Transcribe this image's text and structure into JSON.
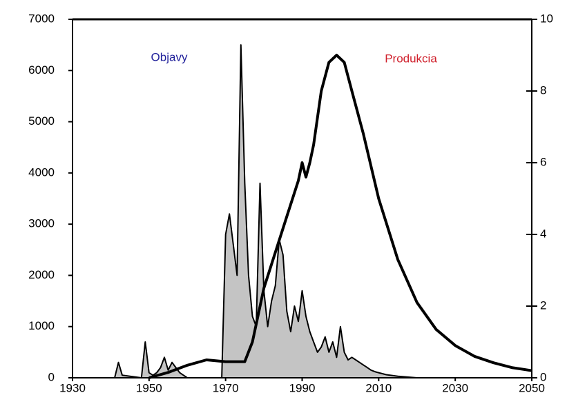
{
  "chart_data": {
    "type": "combo",
    "xlim": [
      1930,
      2050
    ],
    "xticks": [
      1930,
      1950,
      1970,
      1990,
      2010,
      2030,
      2050
    ],
    "ylim": [
      0,
      7000
    ],
    "yticks": [
      0,
      1000,
      2000,
      3000,
      4000,
      5000,
      6000,
      7000
    ],
    "y2lim": [
      0,
      10
    ],
    "y2ticks": [
      0,
      2,
      4,
      6,
      8,
      10
    ],
    "series": [
      {
        "name": "Objavy",
        "type": "area",
        "color": "#c4c4c4",
        "label_color": "#1f1f9a",
        "x": [
          1930,
          1941,
          1942,
          1943,
          1948,
          1949,
          1950,
          1951,
          1952,
          1953,
          1954,
          1955,
          1956,
          1957,
          1958,
          1959,
          1960,
          1968,
          1969,
          1970,
          1971,
          1972,
          1973,
          1974,
          1975,
          1976,
          1977,
          1978,
          1979,
          1980,
          1981,
          1982,
          1983,
          1984,
          1985,
          1986,
          1987,
          1988,
          1989,
          1990,
          1991,
          1992,
          1993,
          1994,
          1995,
          1996,
          1997,
          1998,
          1999,
          2000,
          2001,
          2002,
          2003,
          2004,
          2005,
          2006,
          2007,
          2008,
          2009,
          2010,
          2012,
          2015,
          2020,
          2050
        ],
        "values": [
          0,
          0,
          300,
          50,
          0,
          700,
          100,
          50,
          100,
          200,
          400,
          150,
          300,
          200,
          100,
          50,
          0,
          0,
          0,
          2800,
          3200,
          2600,
          2000,
          6500,
          3800,
          2000,
          1200,
          1000,
          3800,
          1700,
          1000,
          1500,
          1800,
          2700,
          2400,
          1300,
          900,
          1400,
          1100,
          1700,
          1200,
          900,
          700,
          500,
          600,
          800,
          500,
          700,
          400,
          1000,
          500,
          350,
          400,
          350,
          300,
          250,
          200,
          150,
          120,
          100,
          60,
          30,
          0,
          0
        ]
      },
      {
        "name": "Produkcia",
        "type": "line",
        "axis": "y2",
        "color": "#000000",
        "label_color": "#d0202c",
        "x": [
          1950,
          1955,
          1960,
          1965,
          1970,
          1975,
          1977,
          1980,
          1983,
          1986,
          1989,
          1990,
          1991,
          1992,
          1993,
          1995,
          1997,
          1999,
          2001,
          2003,
          2006,
          2010,
          2015,
          2020,
          2025,
          2030,
          2035,
          2040,
          2045,
          2050
        ],
        "values": [
          0,
          0.15,
          0.35,
          0.5,
          0.45,
          0.45,
          1.0,
          2.5,
          3.5,
          4.5,
          5.5,
          6.0,
          5.6,
          6.0,
          6.5,
          8.0,
          8.8,
          9.0,
          8.8,
          8.0,
          6.8,
          5.0,
          3.3,
          2.1,
          1.35,
          0.9,
          0.6,
          0.42,
          0.28,
          0.2
        ]
      }
    ]
  }
}
